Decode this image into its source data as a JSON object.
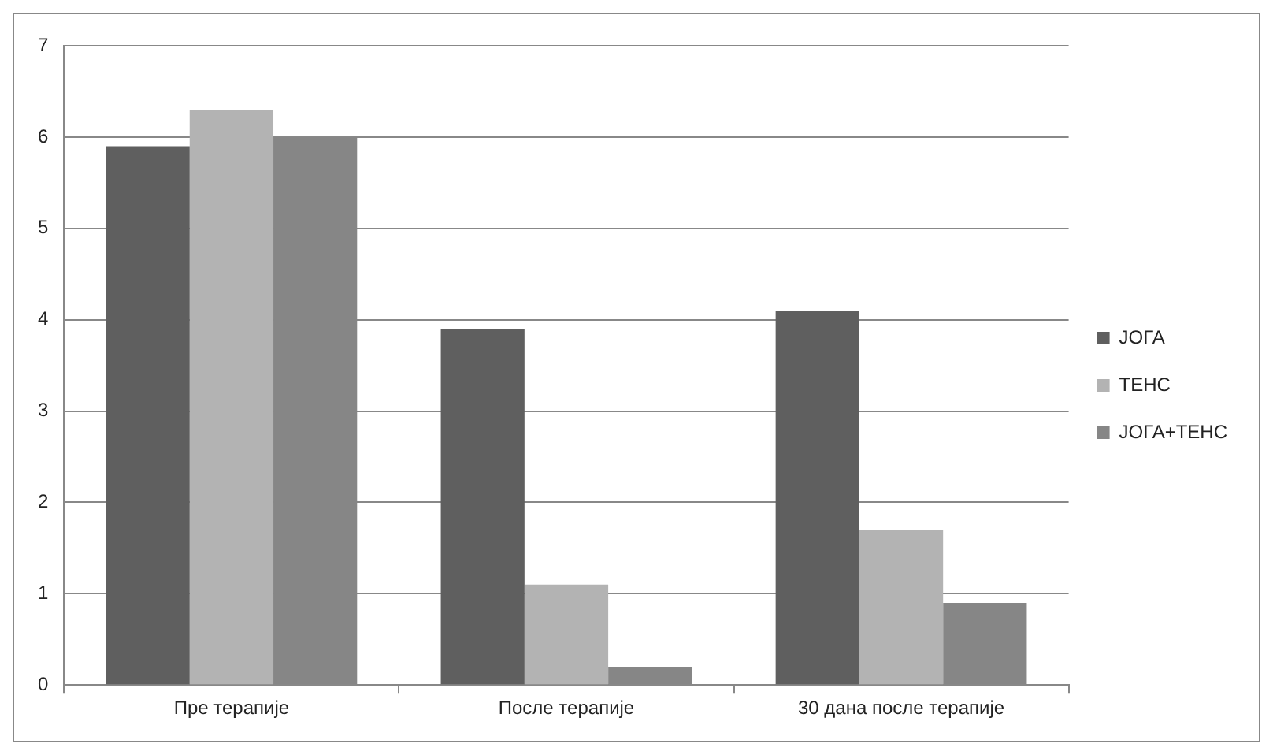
{
  "chart_data": {
    "type": "bar",
    "categories": [
      "Пре терапије",
      "После терапије",
      "30 дана после терапије"
    ],
    "series": [
      {
        "name": "ЈОГА",
        "color": "#5f5f5f",
        "values": [
          5.9,
          3.9,
          4.1
        ]
      },
      {
        "name": "ТЕНС",
        "color": "#b3b3b3",
        "values": [
          6.3,
          1.1,
          1.7
        ]
      },
      {
        "name": "ЈОГА+ТЕНС",
        "color": "#868686",
        "values": [
          6.0,
          0.2,
          0.9
        ]
      }
    ],
    "ylim": [
      0,
      7
    ],
    "yticks": [
      0,
      1,
      2,
      3,
      4,
      5,
      6,
      7
    ],
    "grid": "y",
    "legend": "right"
  }
}
